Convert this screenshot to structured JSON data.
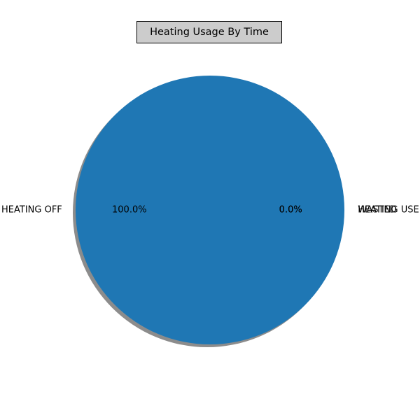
{
  "chart_data": {
    "type": "pie",
    "title": "Heating Usage By Time",
    "slices": [
      {
        "label": "HEATING OFF",
        "value": 100.0,
        "pct_label": "100.0%",
        "color": "#1f77b4"
      },
      {
        "label": "HEATING USED",
        "value": 0.0,
        "pct_label": "0.0%",
        "color": "#ff7f0e"
      },
      {
        "label": "WASTED",
        "value": 0.0,
        "pct_label": "0.0%",
        "color": "#2ca02c"
      }
    ],
    "shadow": true,
    "title_box_color": "#cccccc",
    "title_border_color": "#000000"
  }
}
